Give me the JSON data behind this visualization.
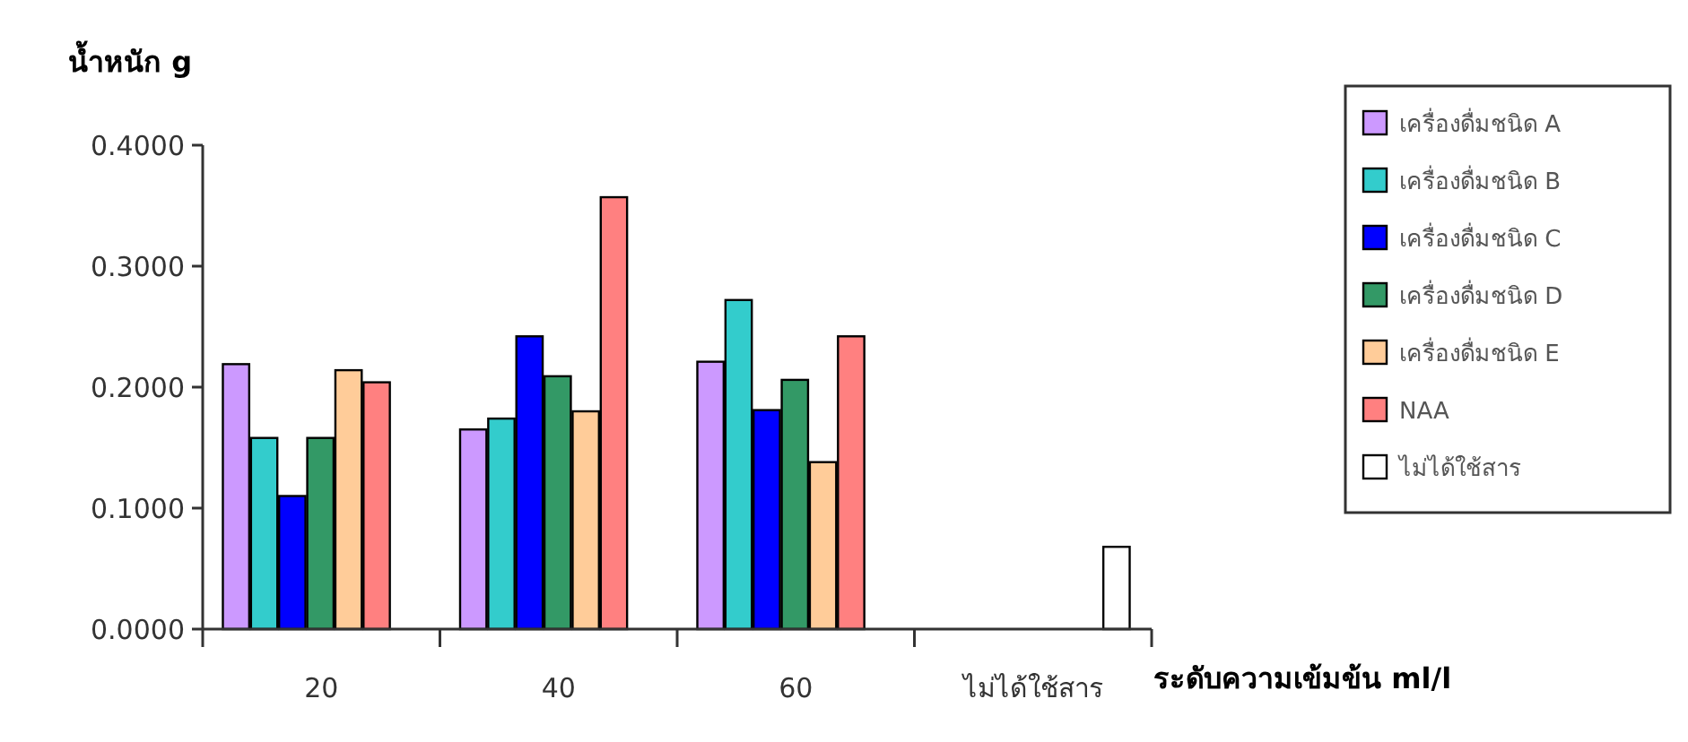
{
  "chart_data": {
    "type": "bar",
    "ylabel": "น้ำหนัก g",
    "xlabel": "ระดับความเข้มข้น ml/l",
    "categories": [
      "20",
      "40",
      "60",
      "ไม่ได้ใช้สาร"
    ],
    "ylim": [
      0,
      0.4
    ],
    "yticks": [
      {
        "value": 0,
        "label": "0.0000"
      },
      {
        "value": 0.1,
        "label": "0.1000"
      },
      {
        "value": 0.2,
        "label": "0.2000"
      },
      {
        "value": 0.3,
        "label": "0.3000"
      },
      {
        "value": 0.4,
        "label": "0.4000"
      }
    ],
    "grid": false,
    "legend": "right",
    "series": [
      {
        "name": "เครื่องดื่มชนิด A",
        "color": "#cc99ff",
        "values": [
          0.219,
          0.165,
          0.221,
          null
        ]
      },
      {
        "name": "เครื่องดื่มชนิด B",
        "color": "#33cccc",
        "values": [
          0.158,
          0.174,
          0.272,
          null
        ]
      },
      {
        "name": "เครื่องดื่มชนิด C",
        "color": "#0000ff",
        "values": [
          0.11,
          0.242,
          0.181,
          null
        ]
      },
      {
        "name": "เครื่องดื่มชนิด D",
        "color": "#339966",
        "values": [
          0.158,
          0.209,
          0.206,
          null
        ]
      },
      {
        "name": "เครื่องดื่มชนิด E",
        "color": "#ffcc99",
        "values": [
          0.214,
          0.18,
          0.138,
          null
        ]
      },
      {
        "name": "NAA",
        "color": "#ff8080",
        "values": [
          0.204,
          0.357,
          0.242,
          null
        ]
      },
      {
        "name": "ไม่ได้ใช้สาร",
        "color": "#ffffff",
        "values": [
          null,
          null,
          null,
          0.068
        ]
      }
    ]
  }
}
